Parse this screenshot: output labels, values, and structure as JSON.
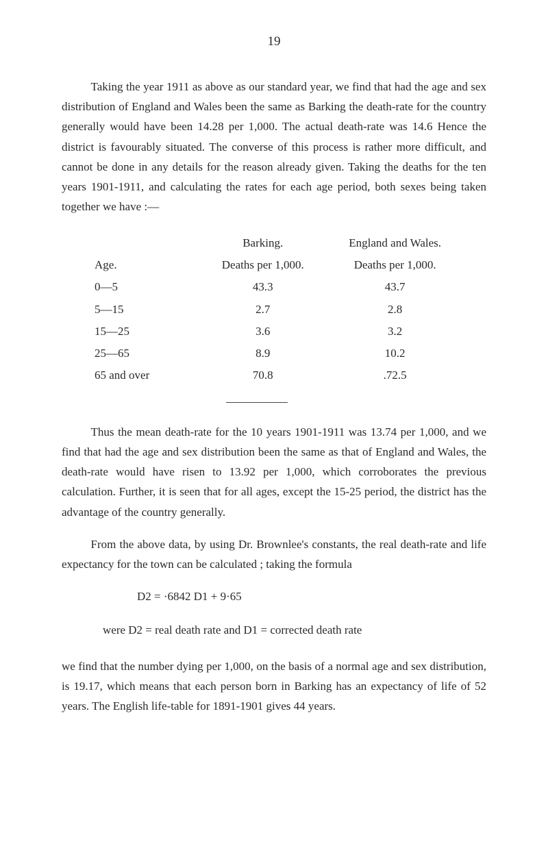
{
  "page_number": "19",
  "para1": "Taking the year 1911 as above as our standard year, we find that had the age and sex distribution of England and Wales been the same as Barking the death-rate for the country generally would have been 14.28 per 1,000. The actual death-rate was 14.6 Hence the district is favourably situated. The converse of this process is rather more difficult, and cannot be done in any details for the reason already given. Taking the deaths for the ten years 1901-1911, and calculating the rates for each age period, both sexes being taken together we have :—",
  "table": {
    "header": {
      "barking": "Barking.",
      "england": "England and Wales.",
      "age": "Age.",
      "barking_sub": "Deaths per 1,000.",
      "england_sub": "Deaths per 1,000."
    },
    "rows": [
      {
        "age": "0—5",
        "barking": "43.3",
        "england": "43.7"
      },
      {
        "age": "5—15",
        "barking": "2.7",
        "england": "2.8"
      },
      {
        "age": "15—25",
        "barking": "3.6",
        "england": "3.2"
      },
      {
        "age": "25—65",
        "barking": "8.9",
        "england": "10.2"
      },
      {
        "age": "65 and over",
        "barking": "70.8",
        "england": ".72.5"
      }
    ]
  },
  "para2": "Thus the mean death-rate for the 10 years 1901-1911 was 13.74 per 1,000, and we find that had the age and sex distribution been the same as that of England and Wales, the death-rate would have risen to 13.92 per 1,000, which corroborates the previous calculation. Further, it is seen that for all ages, except the 15-25 period, the district has the advantage of the country generally.",
  "para3": "From the above data, by using Dr. Brownlee's constants, the real death-rate and life expectancy for the town can be calculated ; taking the formula",
  "formula": "D2 = ·6842 D1 + 9·65",
  "where": "were D2 = real death rate and D1 = corrected death rate",
  "para4": "we find that the number dying per 1,000, on the basis of a normal age and sex distribution, is 19.17, which means that each person born in Barking has an expectancy of life of 52 years. The English life-table for 1891-1901 gives 44 years."
}
